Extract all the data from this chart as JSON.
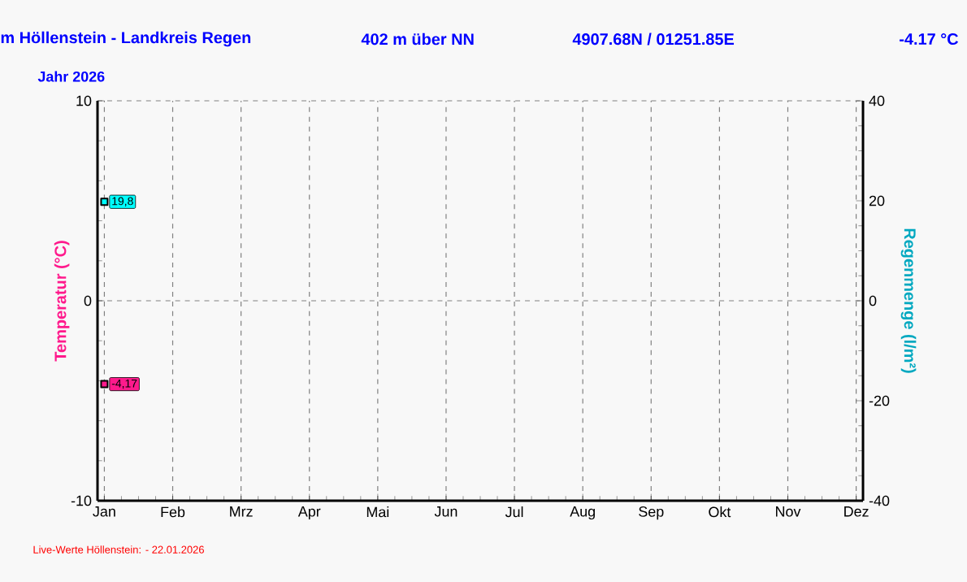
{
  "chart_data": {
    "type": "scatter",
    "marker": "square",
    "title": "m Höllenstein - Landkreis Regen",
    "subtitle": "Jahr  2026",
    "annotations": [
      "402 m über NN",
      "4907.68N / 01251.85E",
      "-4.17 °C",
      "Live-Werte Höllenstein: - 22.01.2026"
    ],
    "ylabel": "Temperatur  (°C)",
    "y2label": "Regenmenge  (l/m²)",
    "categories": [
      "Jan",
      "Feb",
      "Mrz",
      "Apr",
      "Mai",
      "Jun",
      "Jul",
      "Aug",
      "Sep",
      "Okt",
      "Nov",
      "Dez"
    ],
    "ylim": [
      -10,
      10
    ],
    "yticks": [
      -10,
      0,
      10
    ],
    "y2lim": [
      -40,
      40
    ],
    "y2ticks": [
      -40,
      -20,
      0,
      20,
      40
    ],
    "grid": true,
    "series": [
      {
        "color": "#ff1a8c",
        "values": [
          -4.17,
          null,
          null,
          null,
          null,
          null,
          null,
          null,
          null,
          null,
          null,
          null
        ],
        "value_labels": [
          "-4,17",
          null,
          null,
          null,
          null,
          null,
          null,
          null,
          null,
          null,
          null,
          null
        ]
      },
      {
        "color": "#00ffff",
        "axis": "y2",
        "values": [
          19.8,
          null,
          null,
          null,
          null,
          null,
          null,
          null,
          null,
          null,
          null,
          null
        ],
        "value_labels": [
          "19,8",
          null,
          null,
          null,
          null,
          null,
          null,
          null,
          null,
          null,
          null,
          null
        ]
      }
    ]
  }
}
